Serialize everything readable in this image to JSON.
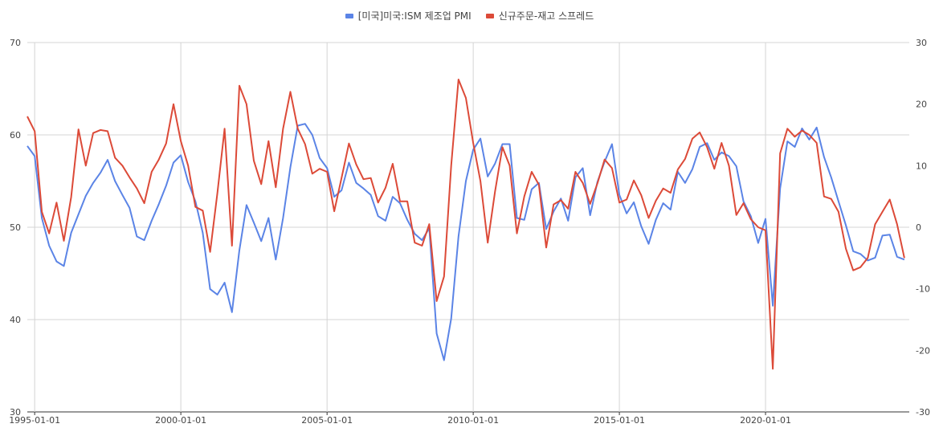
{
  "chart_data": {
    "type": "line",
    "title": "",
    "legend_position": "top-center",
    "grid": true,
    "x_tick_labels": [
      "1995-01-01",
      "2000-01-01",
      "2005-01-01",
      "2010-01-01",
      "2015-01-01",
      "2020-01-01"
    ],
    "x_range": [
      "1994-10-01",
      "2024-12-01"
    ],
    "y_left": {
      "range": [
        30,
        70
      ],
      "ticks": [
        30,
        40,
        50,
        60,
        70
      ]
    },
    "y_right": {
      "range": [
        -30,
        30
      ],
      "ticks": [
        -30,
        -20,
        -10,
        0,
        10,
        20,
        30
      ]
    },
    "series": [
      {
        "name": "[미국]미국:ISM 제조업 PMI",
        "color": "#5b84e6",
        "axis": "left",
        "points": [
          [
            "1994-10-01",
            58.8
          ],
          [
            "1995-01-01",
            57.7
          ],
          [
            "1995-04-01",
            51.0
          ],
          [
            "1995-07-01",
            48.0
          ],
          [
            "1995-10-01",
            46.3
          ],
          [
            "1996-01-01",
            45.8
          ],
          [
            "1996-04-01",
            49.4
          ],
          [
            "1996-07-01",
            51.4
          ],
          [
            "1996-10-01",
            53.4
          ],
          [
            "1997-01-01",
            54.8
          ],
          [
            "1997-04-01",
            55.9
          ],
          [
            "1997-07-01",
            57.3
          ],
          [
            "1997-10-01",
            55.0
          ],
          [
            "1998-01-01",
            53.5
          ],
          [
            "1998-04-01",
            52.1
          ],
          [
            "1998-07-01",
            49.0
          ],
          [
            "1998-10-01",
            48.6
          ],
          [
            "1999-01-01",
            50.7
          ],
          [
            "1999-04-01",
            52.5
          ],
          [
            "1999-07-01",
            54.5
          ],
          [
            "1999-10-01",
            57.0
          ],
          [
            "2000-01-01",
            57.8
          ],
          [
            "2000-04-01",
            54.9
          ],
          [
            "2000-07-01",
            52.8
          ],
          [
            "2000-10-01",
            49.4
          ],
          [
            "2001-01-01",
            43.3
          ],
          [
            "2001-04-01",
            42.7
          ],
          [
            "2001-07-01",
            44.0
          ],
          [
            "2001-10-01",
            40.8
          ],
          [
            "2002-01-01",
            47.5
          ],
          [
            "2002-04-01",
            52.4
          ],
          [
            "2002-07-01",
            50.5
          ],
          [
            "2002-10-01",
            48.5
          ],
          [
            "2003-01-01",
            51.0
          ],
          [
            "2003-04-01",
            46.5
          ],
          [
            "2003-07-01",
            51.0
          ],
          [
            "2003-10-01",
            56.5
          ],
          [
            "2004-01-01",
            61.0
          ],
          [
            "2004-04-01",
            61.2
          ],
          [
            "2004-07-01",
            60.0
          ],
          [
            "2004-10-01",
            57.5
          ],
          [
            "2005-01-01",
            56.4
          ],
          [
            "2005-04-01",
            53.3
          ],
          [
            "2005-07-01",
            54.0
          ],
          [
            "2005-10-01",
            57.0
          ],
          [
            "2006-01-01",
            54.8
          ],
          [
            "2006-04-01",
            54.2
          ],
          [
            "2006-07-01",
            53.5
          ],
          [
            "2006-10-01",
            51.2
          ],
          [
            "2007-01-01",
            50.7
          ],
          [
            "2007-04-01",
            53.3
          ],
          [
            "2007-07-01",
            52.6
          ],
          [
            "2007-10-01",
            50.8
          ],
          [
            "2008-01-01",
            49.3
          ],
          [
            "2008-04-01",
            48.6
          ],
          [
            "2008-07-01",
            49.9
          ],
          [
            "2008-10-01",
            38.5
          ],
          [
            "2009-01-01",
            35.6
          ],
          [
            "2009-04-01",
            40.1
          ],
          [
            "2009-07-01",
            49.0
          ],
          [
            "2009-10-01",
            55.0
          ],
          [
            "2010-01-01",
            58.4
          ],
          [
            "2010-04-01",
            59.6
          ],
          [
            "2010-07-01",
            55.5
          ],
          [
            "2010-10-01",
            56.9
          ],
          [
            "2011-01-01",
            59.0
          ],
          [
            "2011-04-01",
            59.0
          ],
          [
            "2011-07-01",
            51.0
          ],
          [
            "2011-10-01",
            50.8
          ],
          [
            "2012-01-01",
            54.1
          ],
          [
            "2012-04-01",
            54.8
          ],
          [
            "2012-07-01",
            49.8
          ],
          [
            "2012-10-01",
            51.7
          ],
          [
            "2013-01-01",
            53.1
          ],
          [
            "2013-04-01",
            50.7
          ],
          [
            "2013-07-01",
            55.4
          ],
          [
            "2013-10-01",
            56.4
          ],
          [
            "2014-01-01",
            51.3
          ],
          [
            "2014-04-01",
            54.9
          ],
          [
            "2014-07-01",
            57.1
          ],
          [
            "2014-10-01",
            59.0
          ],
          [
            "2015-01-01",
            53.5
          ],
          [
            "2015-04-01",
            51.5
          ],
          [
            "2015-07-01",
            52.7
          ],
          [
            "2015-10-01",
            50.1
          ],
          [
            "2016-01-01",
            48.2
          ],
          [
            "2016-04-01",
            50.8
          ],
          [
            "2016-07-01",
            52.6
          ],
          [
            "2016-10-01",
            51.9
          ],
          [
            "2017-01-01",
            56.0
          ],
          [
            "2017-04-01",
            54.8
          ],
          [
            "2017-07-01",
            56.3
          ],
          [
            "2017-10-01",
            58.7
          ],
          [
            "2018-01-01",
            59.1
          ],
          [
            "2018-04-01",
            57.3
          ],
          [
            "2018-07-01",
            58.1
          ],
          [
            "2018-10-01",
            57.7
          ],
          [
            "2019-01-01",
            56.6
          ],
          [
            "2019-04-01",
            52.8
          ],
          [
            "2019-07-01",
            51.2
          ],
          [
            "2019-10-01",
            48.3
          ],
          [
            "2020-01-01",
            50.9
          ],
          [
            "2020-04-01",
            41.5
          ],
          [
            "2020-07-01",
            54.2
          ],
          [
            "2020-10-01",
            59.3
          ],
          [
            "2021-01-01",
            58.7
          ],
          [
            "2021-04-01",
            60.7
          ],
          [
            "2021-07-01",
            59.5
          ],
          [
            "2021-10-01",
            60.8
          ],
          [
            "2022-01-01",
            57.6
          ],
          [
            "2022-04-01",
            55.4
          ],
          [
            "2022-07-01",
            52.8
          ],
          [
            "2022-10-01",
            50.2
          ],
          [
            "2023-01-01",
            47.4
          ],
          [
            "2023-04-01",
            47.1
          ],
          [
            "2023-07-01",
            46.4
          ],
          [
            "2023-10-01",
            46.7
          ],
          [
            "2024-01-01",
            49.1
          ],
          [
            "2024-04-01",
            49.2
          ],
          [
            "2024-07-01",
            46.8
          ],
          [
            "2024-10-01",
            46.5
          ]
        ]
      },
      {
        "name": "신규주문-재고 스프레드",
        "color": "#dc4a38",
        "axis": "right",
        "points": [
          [
            "1994-10-01",
            18.0
          ],
          [
            "1995-01-01",
            15.6
          ],
          [
            "1995-04-01",
            2.5
          ],
          [
            "1995-07-01",
            -1.0
          ],
          [
            "1995-10-01",
            4.0
          ],
          [
            "1996-01-01",
            -2.2
          ],
          [
            "1996-04-01",
            4.9
          ],
          [
            "1996-07-01",
            15.9
          ],
          [
            "1996-10-01",
            10.0
          ],
          [
            "1997-01-01",
            15.3
          ],
          [
            "1997-04-01",
            15.8
          ],
          [
            "1997-07-01",
            15.6
          ],
          [
            "1997-10-01",
            11.3
          ],
          [
            "1998-01-01",
            10.0
          ],
          [
            "1998-04-01",
            8.1
          ],
          [
            "1998-07-01",
            6.3
          ],
          [
            "1998-10-01",
            3.9
          ],
          [
            "1999-01-01",
            9.0
          ],
          [
            "1999-04-01",
            11.0
          ],
          [
            "1999-07-01",
            13.6
          ],
          [
            "1999-10-01",
            20.0
          ],
          [
            "2000-01-01",
            14.0
          ],
          [
            "2000-04-01",
            10.0
          ],
          [
            "2000-07-01",
            3.3
          ],
          [
            "2000-10-01",
            2.7
          ],
          [
            "2001-01-01",
            -4.0
          ],
          [
            "2001-04-01",
            5.5
          ],
          [
            "2001-07-01",
            16.0
          ],
          [
            "2001-10-01",
            -3.0
          ],
          [
            "2002-01-01",
            23.0
          ],
          [
            "2002-04-01",
            20.0
          ],
          [
            "2002-07-01",
            10.8
          ],
          [
            "2002-10-01",
            7.0
          ],
          [
            "2003-01-01",
            14.0
          ],
          [
            "2003-04-01",
            6.5
          ],
          [
            "2003-07-01",
            16.0
          ],
          [
            "2003-10-01",
            22.0
          ],
          [
            "2004-01-01",
            16.0
          ],
          [
            "2004-04-01",
            13.5
          ],
          [
            "2004-07-01",
            8.7
          ],
          [
            "2004-10-01",
            9.5
          ],
          [
            "2005-01-01",
            9.0
          ],
          [
            "2005-04-01",
            2.6
          ],
          [
            "2005-07-01",
            8.0
          ],
          [
            "2005-10-01",
            13.6
          ],
          [
            "2006-01-01",
            10.2
          ],
          [
            "2006-04-01",
            7.8
          ],
          [
            "2006-07-01",
            8.0
          ],
          [
            "2006-10-01",
            4.0
          ],
          [
            "2007-01-01",
            6.4
          ],
          [
            "2007-04-01",
            10.3
          ],
          [
            "2007-07-01",
            4.2
          ],
          [
            "2007-10-01",
            4.2
          ],
          [
            "2008-01-01",
            -2.5
          ],
          [
            "2008-04-01",
            -3.0
          ],
          [
            "2008-07-01",
            0.5
          ],
          [
            "2008-10-01",
            -12.0
          ],
          [
            "2009-01-01",
            -8.0
          ],
          [
            "2009-04-01",
            10.0
          ],
          [
            "2009-07-01",
            24.0
          ],
          [
            "2009-10-01",
            21.0
          ],
          [
            "2010-01-01",
            13.7
          ],
          [
            "2010-04-01",
            7.5
          ],
          [
            "2010-07-01",
            -2.5
          ],
          [
            "2010-10-01",
            5.8
          ],
          [
            "2011-01-01",
            13.0
          ],
          [
            "2011-04-01",
            10.0
          ],
          [
            "2011-07-01",
            -1.0
          ],
          [
            "2011-10-01",
            5.0
          ],
          [
            "2012-01-01",
            9.0
          ],
          [
            "2012-04-01",
            6.9
          ],
          [
            "2012-07-01",
            -3.3
          ],
          [
            "2012-10-01",
            3.7
          ],
          [
            "2013-01-01",
            4.4
          ],
          [
            "2013-04-01",
            3.0
          ],
          [
            "2013-07-01",
            9.0
          ],
          [
            "2013-10-01",
            7.2
          ],
          [
            "2014-01-01",
            3.8
          ],
          [
            "2014-04-01",
            7.1
          ],
          [
            "2014-07-01",
            11.0
          ],
          [
            "2014-10-01",
            9.6
          ],
          [
            "2015-01-01",
            4.0
          ],
          [
            "2015-04-01",
            4.5
          ],
          [
            "2015-07-01",
            7.6
          ],
          [
            "2015-10-01",
            5.2
          ],
          [
            "2016-01-01",
            1.5
          ],
          [
            "2016-04-01",
            4.3
          ],
          [
            "2016-07-01",
            6.3
          ],
          [
            "2016-10-01",
            5.6
          ],
          [
            "2017-01-01",
            9.4
          ],
          [
            "2017-04-01",
            11.1
          ],
          [
            "2017-07-01",
            14.4
          ],
          [
            "2017-10-01",
            15.4
          ],
          [
            "2018-01-01",
            13.0
          ],
          [
            "2018-04-01",
            9.5
          ],
          [
            "2018-07-01",
            13.7
          ],
          [
            "2018-10-01",
            10.0
          ],
          [
            "2019-01-01",
            2.0
          ],
          [
            "2019-04-01",
            3.9
          ],
          [
            "2019-07-01",
            1.3
          ],
          [
            "2019-10-01",
            0.0
          ],
          [
            "2020-01-01",
            -0.5
          ],
          [
            "2020-04-01",
            -23.0
          ],
          [
            "2020-07-01",
            12.0
          ],
          [
            "2020-10-01",
            16.0
          ],
          [
            "2021-01-01",
            14.7
          ],
          [
            "2021-04-01",
            15.7
          ],
          [
            "2021-07-01",
            15.0
          ],
          [
            "2021-10-01",
            13.7
          ],
          [
            "2022-01-01",
            5.0
          ],
          [
            "2022-04-01",
            4.6
          ],
          [
            "2022-07-01",
            2.5
          ],
          [
            "2022-10-01",
            -3.5
          ],
          [
            "2023-01-01",
            -7.0
          ],
          [
            "2023-04-01",
            -6.5
          ],
          [
            "2023-07-01",
            -5.0
          ],
          [
            "2023-10-01",
            0.5
          ],
          [
            "2024-01-01",
            2.5
          ],
          [
            "2024-04-01",
            4.5
          ],
          [
            "2024-07-01",
            0.5
          ],
          [
            "2024-10-01",
            -5.0
          ]
        ]
      }
    ]
  }
}
